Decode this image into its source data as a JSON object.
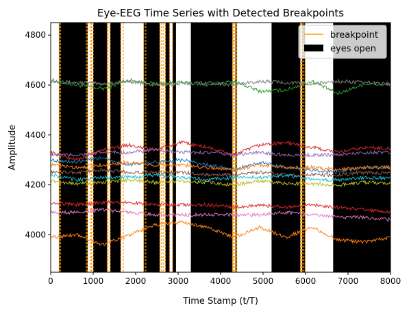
{
  "chart_data": {
    "type": "line",
    "title": "Eye-EEG Time Series with Detected Breakpoints",
    "xlabel": "Time Stamp (t/T)",
    "ylabel": "Amplitude",
    "xlim": [
      0,
      8000
    ],
    "ylim": [
      3850,
      4850
    ],
    "xticks": [
      0,
      1000,
      2000,
      3000,
      4000,
      5000,
      6000,
      7000,
      8000
    ],
    "yticks": [
      4000,
      4200,
      4400,
      4600,
      4800
    ],
    "grid": false,
    "legend": {
      "placement": "top-right",
      "entries": [
        {
          "label": "breakpoint",
          "kind": "line",
          "color": "#ff9900"
        },
        {
          "label": "eyes open",
          "kind": "patch",
          "color": "#000000"
        }
      ]
    },
    "eyes_open_intervals": [
      [
        200,
        870
      ],
      [
        1000,
        1330
      ],
      [
        1400,
        1650
      ],
      [
        2190,
        2570
      ],
      [
        2700,
        2800
      ],
      [
        2870,
        2950
      ],
      [
        3300,
        4280
      ],
      [
        4350,
        4380
      ],
      [
        5200,
        5880
      ],
      [
        5920,
        5990
      ],
      [
        6650,
        8000
      ]
    ],
    "breakpoints": [
      200,
      230,
      840,
      870,
      930,
      960,
      1000,
      1330,
      1350,
      1400,
      1650,
      1710,
      2190,
      2240,
      2570,
      2610,
      2650,
      2700,
      2800,
      2870,
      4280,
      4300,
      4320,
      4350,
      4380,
      5880,
      5900,
      5920,
      5950,
      5990
    ],
    "series": [
      {
        "color": "#2ca02c",
        "values": [
          4620,
          4600,
          4585,
          4620,
          4605,
          4610,
          4600,
          4615,
          4575,
          4580,
          4615,
          4565,
          4605,
          4600
        ]
      },
      {
        "color": "#7f7f7f",
        "values": [
          4615,
          4610,
          4605,
          4615,
          4600,
          4605,
          4610,
          4600,
          4615,
          4610,
          4605,
          4615,
          4610,
          4605
        ]
      },
      {
        "color": "#d62728",
        "values": [
          4330,
          4300,
          4340,
          4360,
          4340,
          4370,
          4350,
          4320,
          4360,
          4370,
          4350,
          4330,
          4350,
          4345
        ]
      },
      {
        "color": "#9467bd",
        "values": [
          4320,
          4320,
          4330,
          4330,
          4340,
          4330,
          4330,
          4320,
          4330,
          4320,
          4320,
          4320,
          4330,
          4330
        ]
      },
      {
        "color": "#1f77b4",
        "values": [
          4300,
          4290,
          4310,
          4280,
          4290,
          4300,
          4280,
          4260,
          4290,
          4270,
          4260,
          4250,
          4270,
          4270
        ]
      },
      {
        "color": "#ff7f0e",
        "values": [
          4280,
          4270,
          4280,
          4290,
          4280,
          4280,
          4270,
          4260,
          4280,
          4270,
          4270,
          4260,
          4270,
          4270
        ]
      },
      {
        "color": "#8c564b",
        "values": [
          4250,
          4250,
          4260,
          4250,
          4250,
          4250,
          4240,
          4240,
          4250,
          4240,
          4240,
          4240,
          4250,
          4245
        ]
      },
      {
        "color": "#17becf",
        "values": [
          4240,
          4220,
          4230,
          4230,
          4240,
          4230,
          4220,
          4230,
          4230,
          4240,
          4220,
          4220,
          4230,
          4225
        ]
      },
      {
        "color": "#bcbd22",
        "values": [
          4215,
          4205,
          4210,
          4220,
          4210,
          4215,
          4210,
          4200,
          4215,
          4205,
          4205,
          4200,
          4210,
          4205
        ]
      },
      {
        "color": "#d62728",
        "values": [
          4130,
          4120,
          4130,
          4130,
          4120,
          4120,
          4120,
          4110,
          4120,
          4110,
          4120,
          4110,
          4100,
          4090
        ]
      },
      {
        "color": "#e377c2",
        "values": [
          4090,
          4090,
          4100,
          4090,
          4080,
          4080,
          4080,
          4080,
          4080,
          4090,
          4080,
          4070,
          4070,
          4060
        ]
      },
      {
        "color": "#ff7f0e",
        "values": [
          3990,
          4000,
          3960,
          4000,
          4040,
          4050,
          4030,
          3990,
          4030,
          3990,
          4030,
          3980,
          3970,
          3990
        ]
      }
    ]
  }
}
